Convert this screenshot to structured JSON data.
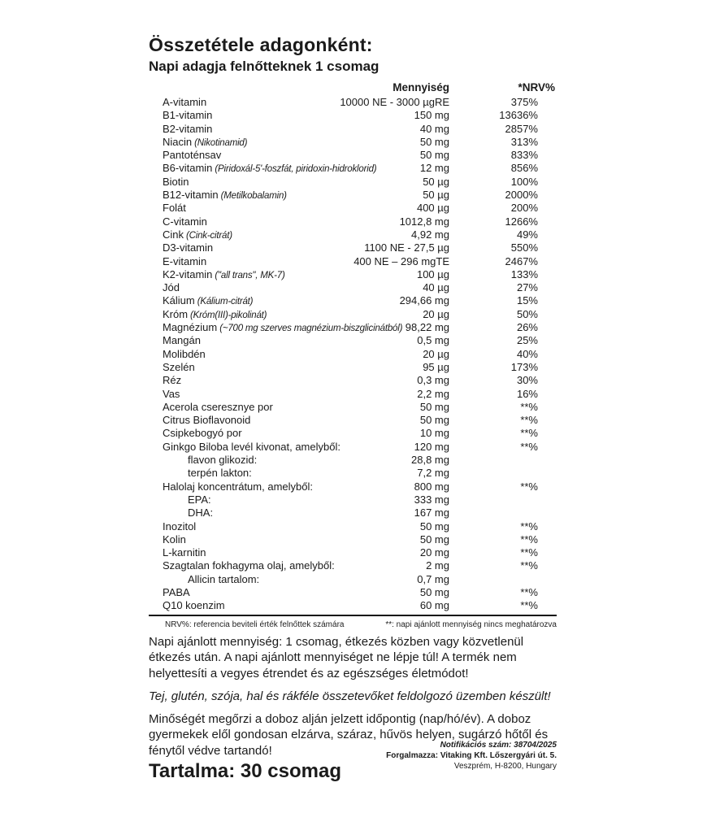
{
  "page": {
    "title": "Összetétele adagonként:",
    "subtitle": "Napi adagja felnőtteknek 1 csomag"
  },
  "table": {
    "headers": {
      "amount": "Mennyiség",
      "nrv": "*NRV%"
    },
    "rows": [
      {
        "name": "A-vitamin",
        "note": "",
        "amount": "10000 NE - 3000 µgRE",
        "nrv": "375%",
        "indent": false
      },
      {
        "name": "B1-vitamin",
        "note": "",
        "amount": "150 mg",
        "nrv": "13636%",
        "indent": false
      },
      {
        "name": "B2-vitamin",
        "note": "",
        "amount": "40 mg",
        "nrv": "2857%",
        "indent": false
      },
      {
        "name": "Niacin",
        "note": "(Nikotinamid)",
        "amount": "50 mg",
        "nrv": "313%",
        "indent": false
      },
      {
        "name": "Pantoténsav",
        "note": "",
        "amount": "50 mg",
        "nrv": "833%",
        "indent": false
      },
      {
        "name": "B6-vitamin",
        "note": "(Piridoxál-5'-foszfát, piridoxin-hidroklorid)",
        "amount": "12 mg",
        "nrv": "856%",
        "indent": false
      },
      {
        "name": "Biotin",
        "note": "",
        "amount": "50 µg",
        "nrv": "100%",
        "indent": false
      },
      {
        "name": "B12-vitamin",
        "note": "(Metilkobalamin)",
        "amount": "50 µg",
        "nrv": "2000%",
        "indent": false
      },
      {
        "name": "Folát",
        "note": "",
        "amount": "400 µg",
        "nrv": "200%",
        "indent": false
      },
      {
        "name": "C-vitamin",
        "note": "",
        "amount": "1012,8 mg",
        "nrv": "1266%",
        "indent": false
      },
      {
        "name": "Cink",
        "note": "(Cink-citrát)",
        "amount": "4,92 mg",
        "nrv": "49%",
        "indent": false
      },
      {
        "name": "D3-vitamin",
        "note": "",
        "amount": "1100 NE - 27,5 µg",
        "nrv": "550%",
        "indent": false
      },
      {
        "name": "E-vitamin",
        "note": "",
        "amount": "400 NE – 296 mgTE",
        "nrv": "2467%",
        "indent": false
      },
      {
        "name": "K2-vitamin",
        "note": "(\"all trans\", MK-7)",
        "amount": "100 µg",
        "nrv": "133%",
        "indent": false
      },
      {
        "name": "Jód",
        "note": "",
        "amount": "40 µg",
        "nrv": "27%",
        "indent": false
      },
      {
        "name": "Kálium",
        "note": "(Kálium-citrát)",
        "amount": "294,66 mg",
        "nrv": "15%",
        "indent": false
      },
      {
        "name": "Króm",
        "note": "(Króm(III)-pikolinát)",
        "amount": "20 µg",
        "nrv": "50%",
        "indent": false
      },
      {
        "name": "Magnézium",
        "note": "(~700 mg szerves magnézium-biszglicinátból)",
        "amount": "98,22 mg",
        "nrv": "26%",
        "indent": false
      },
      {
        "name": "Mangán",
        "note": "",
        "amount": "0,5 mg",
        "nrv": "25%",
        "indent": false
      },
      {
        "name": "Molibdén",
        "note": "",
        "amount": "20 µg",
        "nrv": "40%",
        "indent": false
      },
      {
        "name": "Szelén",
        "note": "",
        "amount": "95 µg",
        "nrv": "173%",
        "indent": false
      },
      {
        "name": "Réz",
        "note": "",
        "amount": "0,3 mg",
        "nrv": "30%",
        "indent": false
      },
      {
        "name": "Vas",
        "note": "",
        "amount": "2,2 mg",
        "nrv": "16%",
        "indent": false
      },
      {
        "name": "Acerola cseresznye por",
        "note": "",
        "amount": "50 mg",
        "nrv": "**%",
        "indent": false
      },
      {
        "name": "Citrus Bioflavonoid",
        "note": "",
        "amount": "50 mg",
        "nrv": "**%",
        "indent": false
      },
      {
        "name": "Csipkebogyó por",
        "note": "",
        "amount": "10 mg",
        "nrv": "**%",
        "indent": false
      },
      {
        "name": "Ginkgo Biloba levél kivonat, amelyből:",
        "note": "",
        "amount": "120 mg",
        "nrv": "**%",
        "indent": false
      },
      {
        "name": "flavon glikozid:",
        "note": "",
        "amount": "28,8 mg",
        "nrv": "",
        "indent": true
      },
      {
        "name": "terpén lakton:",
        "note": "",
        "amount": "7,2 mg",
        "nrv": "",
        "indent": true
      },
      {
        "name": "Halolaj koncentrátum, amelyből:",
        "note": "",
        "amount": "800 mg",
        "nrv": "**%",
        "indent": false
      },
      {
        "name": "EPA:",
        "note": "",
        "amount": "333 mg",
        "nrv": "",
        "indent": true
      },
      {
        "name": "DHA:",
        "note": "",
        "amount": "167 mg",
        "nrv": "",
        "indent": true
      },
      {
        "name": "Inozitol",
        "note": "",
        "amount": "50 mg",
        "nrv": "**%",
        "indent": false
      },
      {
        "name": "Kolin",
        "note": "",
        "amount": "50 mg",
        "nrv": "**%",
        "indent": false
      },
      {
        "name": "L-karnitin",
        "note": "",
        "amount": "20 mg",
        "nrv": "**%",
        "indent": false
      },
      {
        "name": "Szagtalan fokhagyma olaj, amelyből:",
        "note": "",
        "amount": "2 mg",
        "nrv": "**%",
        "indent": false
      },
      {
        "name": "Allicin tartalom:",
        "note": "",
        "amount": "0,7 mg",
        "nrv": "",
        "indent": true
      },
      {
        "name": "PABA",
        "note": "",
        "amount": "50 mg",
        "nrv": "**%",
        "indent": false
      },
      {
        "name": "Q10 koenzim",
        "note": "",
        "amount": "60 mg",
        "nrv": "**%",
        "indent": false
      }
    ],
    "footnote_left": "NRV%: referencia beviteli érték felnőttek számára",
    "footnote_right": "**: napi ajánlott mennyiség nincs meghatározva"
  },
  "paragraphs": {
    "dosage": "Napi ajánlott mennyiség: 1 csomag, étkezés közben vagy közvetlenül étkezés után. A napi ajánlott mennyiséget ne lépje túl! A termék nem helyettesíti a vegyes étrendet és az egészséges életmódot!",
    "allergen": "Tej, glutén, szója, hal és rákféle összetevőket feldolgozó üzemben készült!",
    "storage": "Minőségét megőrzi a doboz alján jelzett időpontig (nap/hó/év). A doboz gyermekek elől gondosan elzárva, száraz, hűvös helyen, sugárzó hőtől és fénytől védve tartandó!"
  },
  "footer": {
    "contents": "Tartalma: 30 csomag",
    "notification": "Notifikációs szám: 38704/2025",
    "distributor": "Forgalmazza: Vitaking Kft. Lőszergyári út. 5.",
    "address": "Veszprém, H-8200, Hungary"
  },
  "colors": {
    "text": "#1b1b1b",
    "background": "#ffffff"
  }
}
